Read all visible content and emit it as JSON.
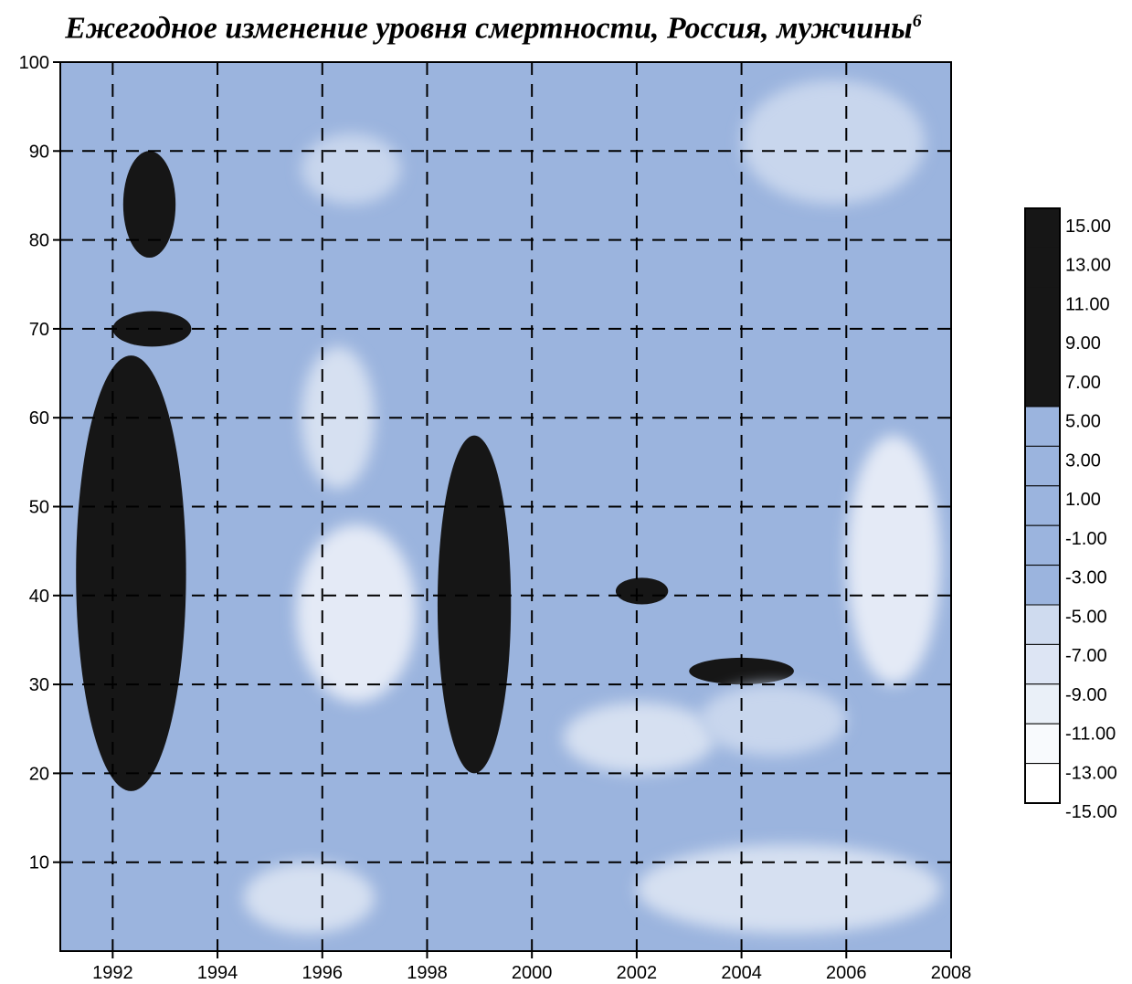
{
  "chart_data": {
    "type": "heatmap",
    "title": "Ежегодное изменение уровня смертности, Россия, мужчины",
    "title_footnote": "6",
    "xlabel": "",
    "ylabel": "",
    "xlim": [
      1991,
      2008
    ],
    "ylim": [
      0,
      100
    ],
    "x_ticks": [
      "1992",
      "1994",
      "1996",
      "1998",
      "2000",
      "2002",
      "2004",
      "2006",
      "2008"
    ],
    "y_ticks": [
      "10",
      "20",
      "30",
      "40",
      "50",
      "60",
      "70",
      "80",
      "90",
      "100"
    ],
    "grid": true,
    "colorbar": {
      "placement": "right",
      "labels": [
        "15.00",
        "13.00",
        "11.00",
        "9.00",
        "7.00",
        "5.00",
        "3.00",
        "1.00",
        "-1.00",
        "-3.00",
        "-5.00",
        "-7.00",
        "-9.00",
        "-11.00",
        "-13.00",
        "-15.00"
      ],
      "colors": {
        "high": "#161616",
        "mid": "#9bb4de",
        "low": "#ffffff"
      }
    },
    "regions": [
      {
        "x": [
          1991.3,
          1993.4
        ],
        "y": [
          18,
          67
        ],
        "value": 15
      },
      {
        "x": [
          1992.2,
          1993.2
        ],
        "y": [
          78,
          90
        ],
        "value": 8
      },
      {
        "x": [
          1992.0,
          1993.5
        ],
        "y": [
          68,
          72
        ],
        "value": 7
      },
      {
        "x": [
          1998.2,
          1999.6
        ],
        "y": [
          20,
          58
        ],
        "value": 6
      },
      {
        "x": [
          2003.0,
          2005.0
        ],
        "y": [
          30,
          33
        ],
        "value": 9
      },
      {
        "x": [
          2001.6,
          2002.6
        ],
        "y": [
          39,
          42
        ],
        "value": 9
      },
      {
        "x": [
          1995.5,
          1997.8
        ],
        "y": [
          28,
          48
        ],
        "value": -9
      },
      {
        "x": [
          1995.6,
          1997.0
        ],
        "y": [
          52,
          68
        ],
        "value": -7
      },
      {
        "x": [
          2006.0,
          2007.8
        ],
        "y": [
          30,
          58
        ],
        "value": -9
      },
      {
        "x": [
          2000.6,
          2003.5
        ],
        "y": [
          20,
          28
        ],
        "value": -7
      },
      {
        "x": [
          2003.2,
          2006.0
        ],
        "y": [
          22,
          30
        ],
        "value": -5
      },
      {
        "x": [
          1995.6,
          1997.5
        ],
        "y": [
          84,
          92
        ],
        "value": -5
      },
      {
        "x": [
          2004.0,
          2007.5
        ],
        "y": [
          84,
          98
        ],
        "value": -5
      },
      {
        "x": [
          1994.5,
          1997.0
        ],
        "y": [
          2,
          10
        ],
        "value": -7
      },
      {
        "x": [
          2002.0,
          2007.8
        ],
        "y": [
          2,
          12
        ],
        "value": -7
      }
    ]
  }
}
